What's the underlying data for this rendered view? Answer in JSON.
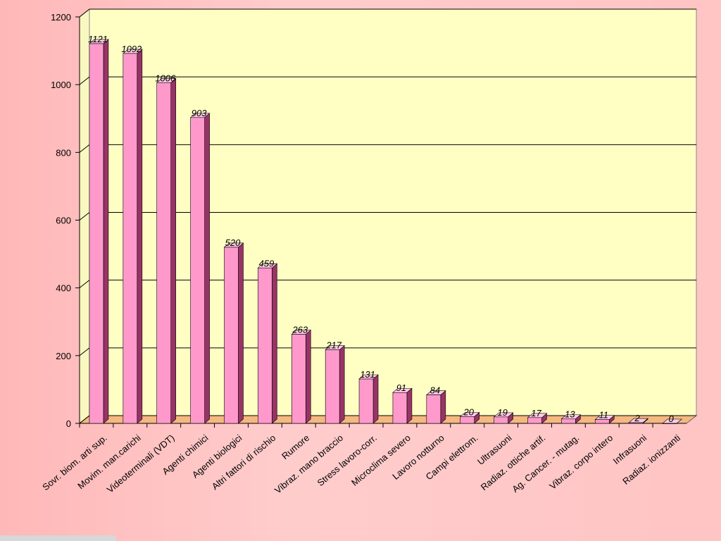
{
  "chart_data": {
    "type": "bar3d",
    "categories": [
      "Sovr. biom. arti sup.",
      "Movim. man.carichi",
      "Videoterminali (VDT)",
      "Agenti chimici",
      "Agenti biologici",
      "Altri fattori di rischio",
      "Rumore",
      "Vibraz. mano braccio",
      "Stress lavoro-corr.",
      "Microclima severo",
      "Lavoro notturno",
      "Campi elettrom.",
      "Ultrasuoni",
      "Radiaz. ottiche artif.",
      "Ag. Cancer. - mutag.",
      "Vibraz. corpo intero",
      "Infrasuoni",
      "Radiaz. ionizzanti"
    ],
    "values": [
      1121,
      1092,
      1006,
      903,
      520,
      459,
      263,
      217,
      131,
      91,
      84,
      20,
      19,
      17,
      13,
      11,
      2,
      0
    ],
    "color": "#ff99cc",
    "ylim": [
      0,
      1200
    ],
    "yticks": [
      0,
      200,
      400,
      600,
      800,
      1000,
      1200
    ],
    "grid": true
  }
}
